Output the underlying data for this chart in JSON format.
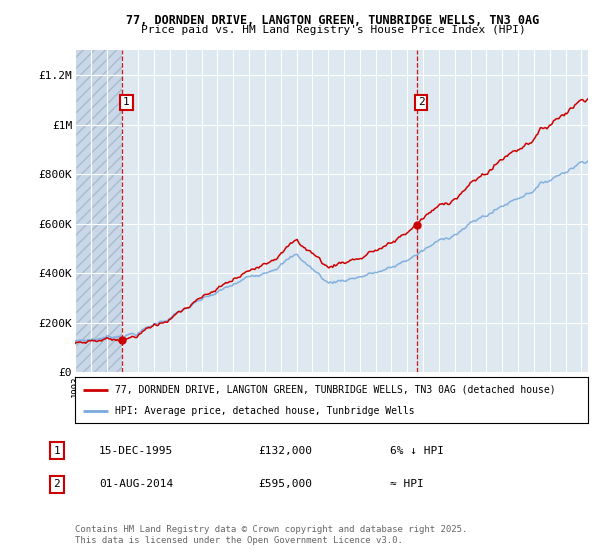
{
  "title_line1": "77, DORNDEN DRIVE, LANGTON GREEN, TUNBRIDGE WELLS, TN3 0AG",
  "title_line2": "Price paid vs. HM Land Registry's House Price Index (HPI)",
  "ylim": [
    0,
    1300000
  ],
  "yticks": [
    0,
    200000,
    400000,
    600000,
    800000,
    1000000,
    1200000
  ],
  "ytick_labels": [
    "£0",
    "£200K",
    "£400K",
    "£600K",
    "£800K",
    "£1M",
    "£1.2M"
  ],
  "sale1_year": 1995.958,
  "sale1_price": 132000,
  "sale2_year": 2014.583,
  "sale2_price": 595000,
  "hpi_line_color": "#7aaadc",
  "price_line_color": "#cc0000",
  "dashed_line_color": "#cc0000",
  "plot_bg_color": "#dde8f0",
  "hatch_bg_color": "#c8d8e8",
  "grid_color": "#ffffff",
  "legend_label_red": "77, DORNDEN DRIVE, LANGTON GREEN, TUNBRIDGE WELLS, TN3 0AG (detached house)",
  "legend_label_blue": "HPI: Average price, detached house, Tunbridge Wells",
  "annotation1_date": "15-DEC-1995",
  "annotation1_price": "£132,000",
  "annotation1_rel": "6% ↓ HPI",
  "annotation2_date": "01-AUG-2014",
  "annotation2_price": "£595,000",
  "annotation2_rel": "≈ HPI",
  "footer": "Contains HM Land Registry data © Crown copyright and database right 2025.\nThis data is licensed under the Open Government Licence v3.0.",
  "x_start_year": 1993,
  "x_end_year": 2025
}
